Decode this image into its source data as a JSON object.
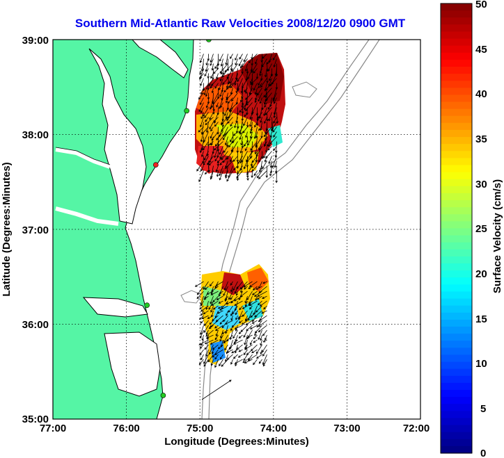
{
  "title": "Southern Mid-Atlantic Raw Velocities 2008/12/20 0900 GMT",
  "x_axis": {
    "label": "Longitude (Degrees:Minutes)",
    "ticks": [
      "77:00",
      "76:00",
      "75:00",
      "74:00",
      "73:00",
      "72:00"
    ]
  },
  "y_axis": {
    "label": "Latitude (Degrees:Minutes)",
    "ticks": [
      "39:00",
      "38:00",
      "37:00",
      "36:00",
      "35:00"
    ]
  },
  "colorbar": {
    "label": "Surface Velocity (cm/s)",
    "ticks": [
      "50",
      "45",
      "40",
      "35",
      "30",
      "25",
      "20",
      "15",
      "10",
      "5",
      "0"
    ],
    "min": 0,
    "max": 50,
    "colormap": "jet"
  },
  "colors": {
    "land": "#55f5a5",
    "title": "#0000ee",
    "background": "#ffffff",
    "station": "#22cc22",
    "station_alt": "#ee2222"
  },
  "chart_data": {
    "type": "map-vector-field",
    "lon_range": [
      -77,
      -72
    ],
    "lat_range": [
      35,
      39
    ],
    "grid": true,
    "north_field": {
      "lon_range": [
        -74.95,
        -73.95
      ],
      "lat_range": [
        37.6,
        38.85
      ],
      "speed_range_cm_s": [
        10,
        50
      ],
      "dominant_direction": "south-southwest"
    },
    "south_field": {
      "lon_range": [
        -74.95,
        -74.05
      ],
      "lat_range": [
        35.6,
        36.45
      ],
      "speed_range_cm_s": [
        8,
        50
      ],
      "dominant_direction": "southwest"
    },
    "stations": [
      {
        "lon": -74.88,
        "lat": 39.0,
        "kind": "station"
      },
      {
        "lon": -75.18,
        "lat": 38.25,
        "kind": "station"
      },
      {
        "lon": -75.6,
        "lat": 37.68,
        "kind": "station_alt"
      },
      {
        "lon": -75.72,
        "lat": 36.2,
        "kind": "station"
      },
      {
        "lon": -75.5,
        "lat": 35.25,
        "kind": "station"
      }
    ]
  }
}
